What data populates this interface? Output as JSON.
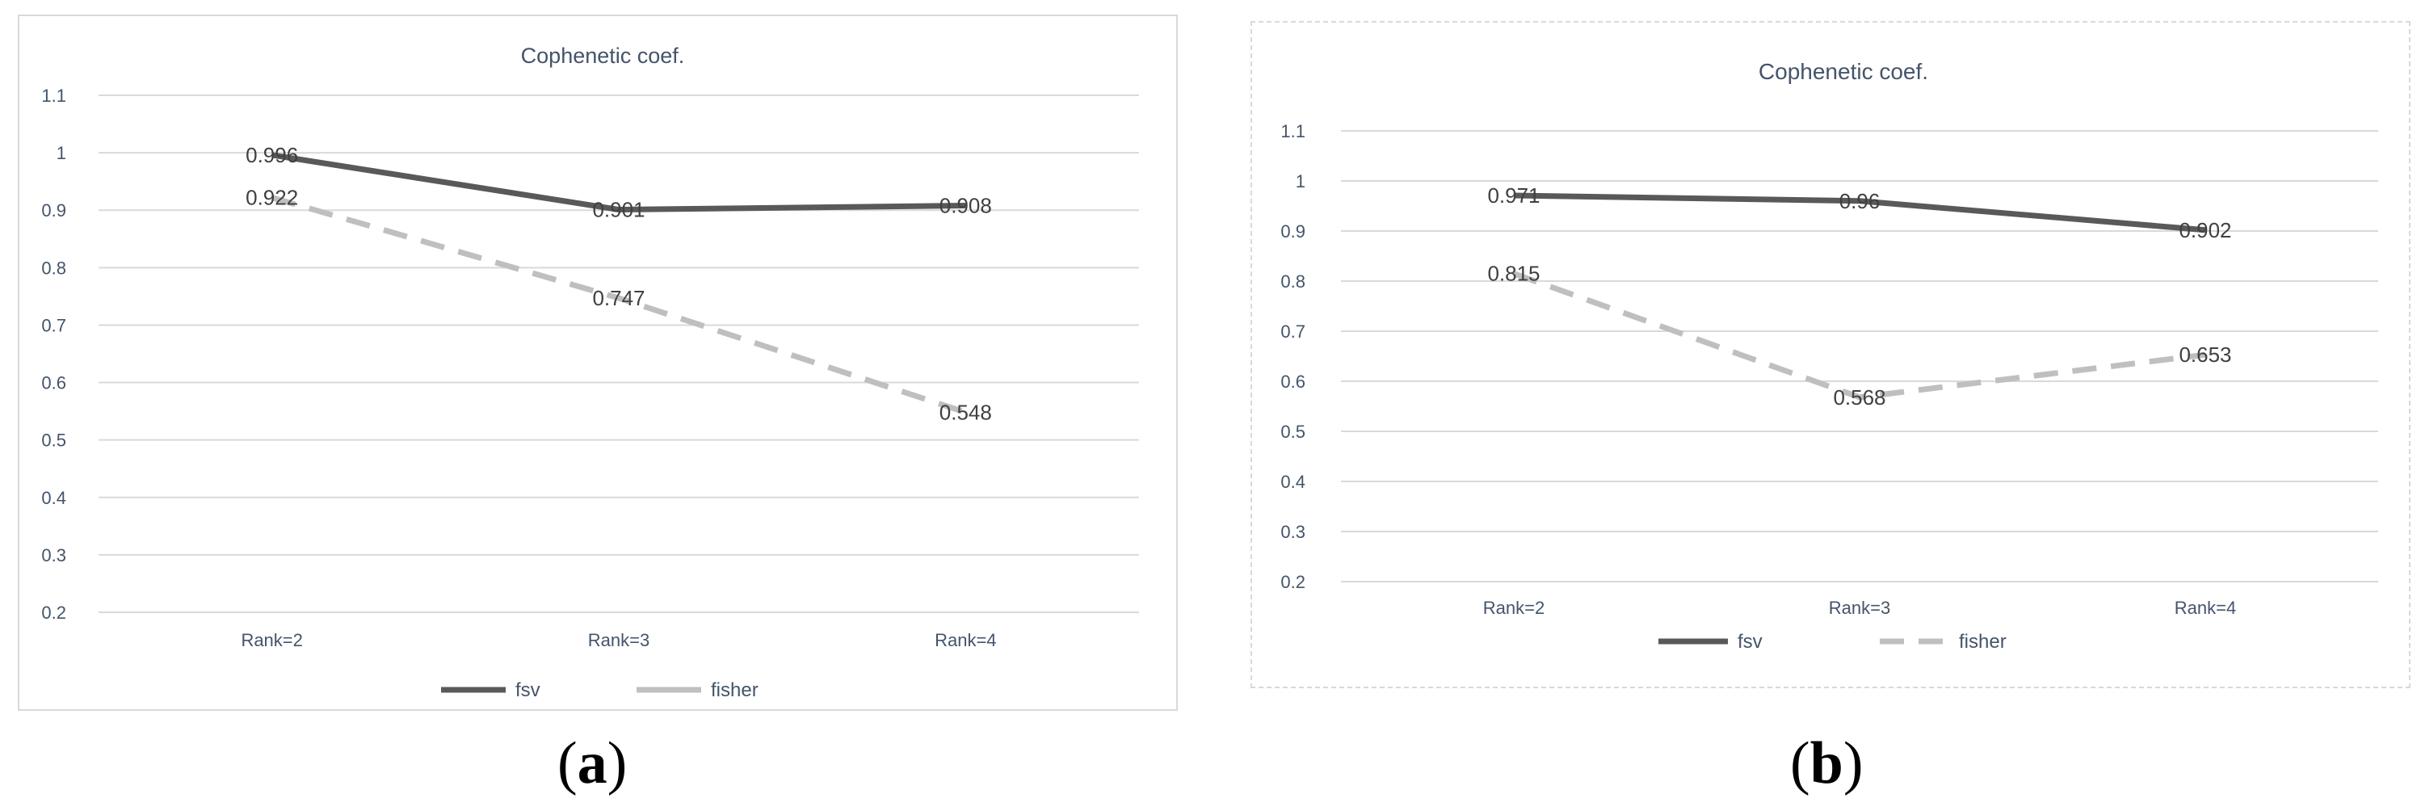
{
  "colors": {
    "fsv": "#595959",
    "fisher": "#bfbfbf",
    "grid": "#d9d9d9",
    "text": "#44546a",
    "label": "#404040"
  },
  "chart_data": [
    {
      "type": "line",
      "panel_label": "a",
      "title": "Cophenetic coef.",
      "categories": [
        "Rank=2",
        "Rank=3",
        "Rank=4"
      ],
      "ylim": [
        0.2,
        1.1
      ],
      "yticks": [
        "0.2",
        "0.3",
        "0.4",
        "0.5",
        "0.6",
        "0.7",
        "0.8",
        "0.9",
        "1",
        "1.1"
      ],
      "grid": true,
      "legend": "bottom",
      "series": [
        {
          "name": "fsv",
          "values": [
            0.996,
            0.901,
            0.908
          ],
          "labels": [
            "0.996",
            "0.901",
            "0.908"
          ],
          "style": "solid"
        },
        {
          "name": "fisher",
          "values": [
            0.922,
            0.747,
            0.548
          ],
          "labels": [
            "0.922",
            "0.747",
            "0.548"
          ],
          "style": "dashed"
        }
      ]
    },
    {
      "type": "line",
      "panel_label": "b",
      "title": "Cophenetic coef.",
      "categories": [
        "Rank=2",
        "Rank=3",
        "Rank=4"
      ],
      "ylim": [
        0.2,
        1.1
      ],
      "yticks": [
        "0.2",
        "0.3",
        "0.4",
        "0.5",
        "0.6",
        "0.7",
        "0.8",
        "0.9",
        "1",
        "1.1"
      ],
      "grid": true,
      "legend": "bottom",
      "series": [
        {
          "name": "fsv",
          "values": [
            0.971,
            0.96,
            0.902
          ],
          "labels": [
            "0.971",
            "0.96",
            "0.902"
          ],
          "style": "solid"
        },
        {
          "name": "fisher",
          "values": [
            0.815,
            0.568,
            0.653
          ],
          "labels": [
            "0.815",
            "0.568",
            "0.653"
          ],
          "style": "dashed"
        }
      ]
    }
  ]
}
